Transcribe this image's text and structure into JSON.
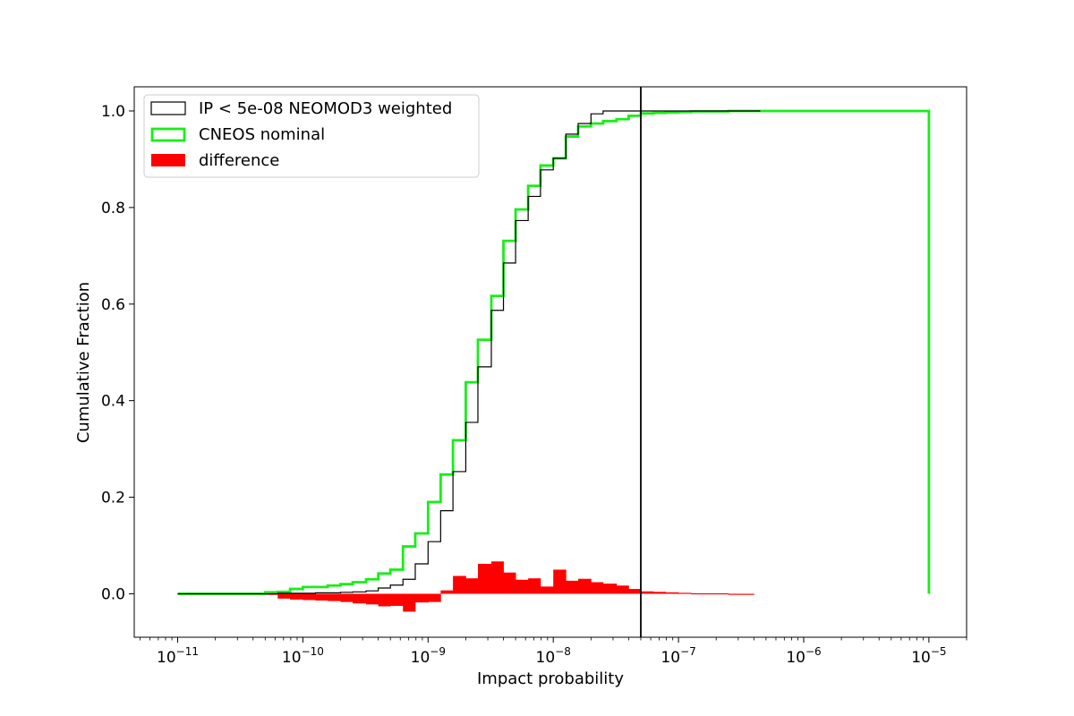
{
  "chart_data": {
    "type": "line",
    "title": "",
    "xlabel": "Impact probability",
    "ylabel": "Cumulative Fraction",
    "xscale": "log",
    "xlim": [
      4.5e-12,
      2e-05
    ],
    "ylim": [
      -0.09,
      1.05
    ],
    "x_ticks": [
      {
        "base": "10",
        "exp": "−11",
        "value": 1e-11
      },
      {
        "base": "10",
        "exp": "−10",
        "value": 1e-10
      },
      {
        "base": "10",
        "exp": "−9",
        "value": 1e-09
      },
      {
        "base": "10",
        "exp": "−8",
        "value": 1e-08
      },
      {
        "base": "10",
        "exp": "−7",
        "value": 1e-07
      },
      {
        "base": "10",
        "exp": "−6",
        "value": 1e-06
      },
      {
        "base": "10",
        "exp": "−5",
        "value": 1e-05
      }
    ],
    "y_ticks": [
      {
        "label": "0.0",
        "value": 0.0
      },
      {
        "label": "0.2",
        "value": 0.2
      },
      {
        "label": "0.4",
        "value": 0.4
      },
      {
        "label": "0.6",
        "value": 0.6
      },
      {
        "label": "0.8",
        "value": 0.8
      },
      {
        "label": "1.0",
        "value": 1.0
      }
    ],
    "grid": false,
    "legend_position": "upper-left",
    "vline": {
      "x": 5e-08,
      "color": "#000000"
    },
    "series": [
      {
        "name": "IP < 5e-08 NEOMOD3 weighted",
        "kind": "step-outline",
        "color": "#000000",
        "x": [
          1e-11,
          4e-11,
          5e-11,
          6.3e-11,
          7.9e-11,
          1e-10,
          1.26e-10,
          1.58e-10,
          2e-10,
          2.5e-10,
          3.2e-10,
          4e-10,
          5e-10,
          6.3e-10,
          7.9e-10,
          1e-09,
          1.26e-09,
          1.58e-09,
          2e-09,
          2.5e-09,
          3.2e-09,
          4e-09,
          5e-09,
          6.3e-09,
          7.9e-09,
          1e-08,
          1.26e-08,
          1.58e-08,
          2e-08,
          2.5e-08,
          3.2e-08,
          4e-08,
          5e-08,
          6.3e-08,
          7.9e-08,
          1e-07,
          1.26e-07,
          1.58e-07,
          2e-07,
          2.5e-07,
          3.2e-07,
          4e-07,
          4.5e-07
        ],
        "y": [
          0.0,
          0.0,
          0.0,
          0.001,
          0.001,
          0.001,
          0.002,
          0.002,
          0.003,
          0.004,
          0.006,
          0.012,
          0.018,
          0.03,
          0.062,
          0.108,
          0.172,
          0.253,
          0.355,
          0.47,
          0.587,
          0.685,
          0.773,
          0.823,
          0.878,
          0.902,
          0.952,
          0.974,
          0.994,
          1.0,
          1.0,
          1.0,
          1.0,
          1.0,
          1.0,
          1.0,
          1.0,
          1.0,
          1.0,
          1.0,
          1.0,
          1.0,
          1.0
        ]
      },
      {
        "name": "CNEOS nominal",
        "kind": "step-outline",
        "color": "#18ee18",
        "x": [
          1e-11,
          4e-11,
          5e-11,
          6.3e-11,
          7.9e-11,
          1e-10,
          1.26e-10,
          1.58e-10,
          2e-10,
          2.5e-10,
          3.2e-10,
          4e-10,
          5e-10,
          6.3e-10,
          7.9e-10,
          1e-09,
          1.26e-09,
          1.58e-09,
          2e-09,
          2.5e-09,
          3.2e-09,
          4e-09,
          5e-09,
          6.3e-09,
          7.9e-09,
          1e-08,
          1.26e-08,
          1.58e-08,
          2e-08,
          2.5e-08,
          3.2e-08,
          4e-08,
          5e-08,
          6.3e-08,
          7.9e-08,
          1e-07,
          1.26e-07,
          1.58e-07,
          2e-07,
          2.5e-07,
          3.2e-07,
          4e-07,
          4.5e-07,
          1e-05
        ],
        "y": [
          0.0,
          0.0,
          0.003,
          0.004,
          0.01,
          0.014,
          0.014,
          0.017,
          0.02,
          0.024,
          0.03,
          0.042,
          0.05,
          0.098,
          0.125,
          0.19,
          0.247,
          0.318,
          0.438,
          0.526,
          0.617,
          0.731,
          0.796,
          0.845,
          0.887,
          0.902,
          0.947,
          0.968,
          0.974,
          0.979,
          0.983,
          0.99,
          0.995,
          0.996,
          0.997,
          0.998,
          0.999,
          0.999,
          0.999,
          1.0,
          1.0,
          1.0,
          1.0,
          0.0
        ]
      },
      {
        "name": "difference",
        "kind": "step-filled",
        "color": "#ff0000",
        "x": [
          1e-11,
          4e-11,
          5e-11,
          6.3e-11,
          7.9e-11,
          1e-10,
          1.26e-10,
          1.58e-10,
          2e-10,
          2.5e-10,
          3.2e-10,
          4e-10,
          5e-10,
          6.3e-10,
          7.9e-10,
          1e-09,
          1.26e-09,
          1.58e-09,
          2e-09,
          2.5e-09,
          3.2e-09,
          4e-09,
          5e-09,
          6.3e-09,
          7.9e-09,
          1e-08,
          1.26e-08,
          1.58e-08,
          2e-08,
          2.5e-08,
          3.2e-08,
          4e-08,
          5e-08,
          6.3e-08,
          7.9e-08,
          1e-07,
          1.26e-07,
          1.58e-07,
          2e-07,
          2.5e-07,
          3.2e-07,
          4e-07
        ],
        "y": [
          0.0,
          0.0,
          -0.002,
          -0.01,
          -0.012,
          -0.013,
          -0.014,
          -0.015,
          -0.017,
          -0.02,
          -0.022,
          -0.026,
          -0.025,
          -0.037,
          -0.018,
          -0.017,
          0.007,
          0.037,
          0.032,
          0.062,
          0.067,
          0.044,
          0.029,
          0.032,
          0.015,
          0.05,
          0.027,
          0.031,
          0.024,
          0.021,
          0.017,
          0.01,
          0.005,
          0.004,
          0.003,
          0.002,
          0.001,
          0.001,
          0.001,
          0.0,
          0.0,
          0.0
        ]
      }
    ]
  }
}
